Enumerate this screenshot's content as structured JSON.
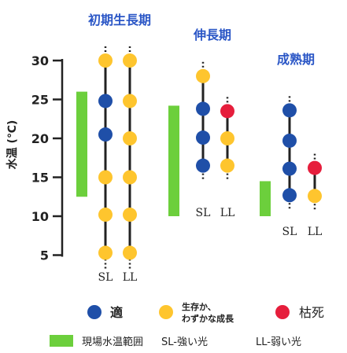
{
  "chart_data": {
    "type": "scatter",
    "ylabel": "水温 (℃)",
    "ylim": [
      5,
      30
    ],
    "yticks": [
      5,
      10,
      15,
      20,
      25,
      30
    ],
    "stages": [
      {
        "title": "初期生長期",
        "field_range": [
          12.5,
          26
        ],
        "columns": [
          {
            "label": "SL",
            "span": [
              5,
              30
            ],
            "points": [
              {
                "y": 30,
                "status": "surviving"
              },
              {
                "y": 24.8,
                "status": "optimal"
              },
              {
                "y": 20.5,
                "status": "optimal"
              },
              {
                "y": 15,
                "status": "surviving"
              },
              {
                "y": 10.2,
                "status": "surviving"
              },
              {
                "y": 5.3,
                "status": "surviving"
              }
            ]
          },
          {
            "label": "LL",
            "span": [
              5,
              30
            ],
            "points": [
              {
                "y": 30,
                "status": "surviving"
              },
              {
                "y": 24.8,
                "status": "surviving"
              },
              {
                "y": 20,
                "status": "surviving"
              },
              {
                "y": 15,
                "status": "surviving"
              },
              {
                "y": 10.2,
                "status": "surviving"
              },
              {
                "y": 5.3,
                "status": "surviving"
              }
            ]
          }
        ]
      },
      {
        "title": "伸長期",
        "field_range": [
          10,
          24.2
        ],
        "columns": [
          {
            "label": "SL",
            "span": [
              16.5,
              28
            ],
            "points": [
              {
                "y": 28,
                "status": "surviving"
              },
              {
                "y": 23.8,
                "status": "optimal"
              },
              {
                "y": 20.1,
                "status": "optimal"
              },
              {
                "y": 16.5,
                "status": "optimal"
              }
            ]
          },
          {
            "label": "LL",
            "span": [
              16.5,
              23.5
            ],
            "points": [
              {
                "y": 23.5,
                "status": "dead"
              },
              {
                "y": 20,
                "status": "surviving"
              },
              {
                "y": 16.5,
                "status": "surviving"
              }
            ]
          }
        ]
      },
      {
        "title": "成熟期",
        "field_range": [
          10,
          14.5
        ],
        "columns": [
          {
            "label": "SL",
            "span": [
              12.7,
              23.6
            ],
            "points": [
              {
                "y": 23.6,
                "status": "optimal"
              },
              {
                "y": 19.7,
                "status": "optimal"
              },
              {
                "y": 16.1,
                "status": "optimal"
              },
              {
                "y": 12.7,
                "status": "optimal"
              }
            ]
          },
          {
            "label": "LL",
            "span": [
              12.6,
              16.2
            ],
            "points": [
              {
                "y": 16.2,
                "status": "dead"
              },
              {
                "y": 12.6,
                "status": "surviving"
              }
            ]
          }
        ]
      }
    ],
    "legend": [
      {
        "key": "optimal",
        "label": "適",
        "color": "#1f4fa8"
      },
      {
        "key": "surviving",
        "label": "生存か、わずかな成長",
        "color": "#fec52e"
      },
      {
        "key": "dead",
        "label": "枯死",
        "color": "#e61e3c"
      }
    ],
    "legend_extra": {
      "field_label": "現場水温範囲",
      "field_color": "#6ccf3c",
      "sl_note": "SL-強い光",
      "ll_note": "LL-弱い光"
    }
  }
}
